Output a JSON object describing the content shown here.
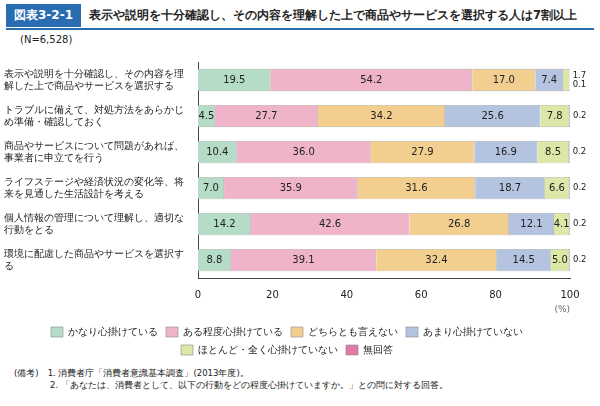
{
  "chart_data": {
    "type": "bar",
    "figure_number": "図表3-2-1",
    "title": "表示や説明を十分確認し、その内容を理解した上で商品やサービスを選択する人は7割以上",
    "subtitle": "(N=6,528)",
    "xlabel": "(%)",
    "annotations": [
      "(備考)　1. 消費者庁「消費者意識基本調査」(2013年度)。",
      "2. 「あなたは、消費者として、以下の行動をどの程度心掛けていますか。」との問に対する回答。"
    ],
    "orientation": "horizontal",
    "stacked": true,
    "data_labels": true,
    "grid": false,
    "legend": "bottom",
    "categories": [
      "表示や説明を十分確認し、その内容を理解した上で商品やサービスを選択する",
      "トラブルに備えて、対処方法をあらかじめ準備・確認しておく",
      "商品やサービスについて問題があれば、事業者に申立てを行う",
      "ライフステージや経済状況の変化等、将来を見通した生活設計を考える",
      "個人情報の管理について理解し、適切な行動をとる",
      "環境に配慮した商品やサービスを選択する"
    ],
    "xlim": [
      0,
      100
    ],
    "xticks": [
      0,
      20,
      40,
      60,
      80,
      100
    ],
    "series": [
      {
        "name": "かなり心掛けている",
        "color": "#b5dcc6",
        "values": [
          19.5,
          4.5,
          10.4,
          7.0,
          14.2,
          8.8
        ],
        "value_labels": [
          "19.5",
          "4.5",
          "10.4",
          "7.0",
          "14.2",
          "8.8"
        ]
      },
      {
        "name": "ある程度心掛けている",
        "color": "#efb3ca",
        "values": [
          54.2,
          27.7,
          36.0,
          35.9,
          42.6,
          39.1
        ],
        "value_labels": [
          "54.2",
          "27.7",
          "36.0",
          "35.9",
          "42.6",
          "39.1"
        ]
      },
      {
        "name": "どちらとも言えない",
        "color": "#f2cf8f",
        "values": [
          17.0,
          34.2,
          27.9,
          31.6,
          26.8,
          32.4
        ],
        "value_labels": [
          "17.0",
          "34.2",
          "27.9",
          "31.6",
          "26.8",
          "32.4"
        ]
      },
      {
        "name": "あまり心掛けていない",
        "color": "#b4c3df",
        "values": [
          7.4,
          25.6,
          16.9,
          18.7,
          12.1,
          14.5
        ],
        "value_labels": [
          "7.4",
          "25.6",
          "16.9",
          "18.7",
          "12.1",
          "14.5"
        ]
      },
      {
        "name": "ほとんど・全く心掛けていない",
        "color": "#dbe8a8",
        "values": [
          1.7,
          7.8,
          8.5,
          6.6,
          4.1,
          5.0
        ],
        "value_labels": [
          "1.7",
          "7.8",
          "8.5",
          "6.6",
          "4.1",
          "5.0"
        ]
      },
      {
        "name": "無回答",
        "color": "#e07aa9",
        "values": [
          0.1,
          0.2,
          0.2,
          0.2,
          0.2,
          0.2
        ],
        "value_labels": [
          "0.1",
          "0.2",
          "0.2",
          "0.2",
          "0.2",
          "0.2"
        ]
      }
    ]
  }
}
